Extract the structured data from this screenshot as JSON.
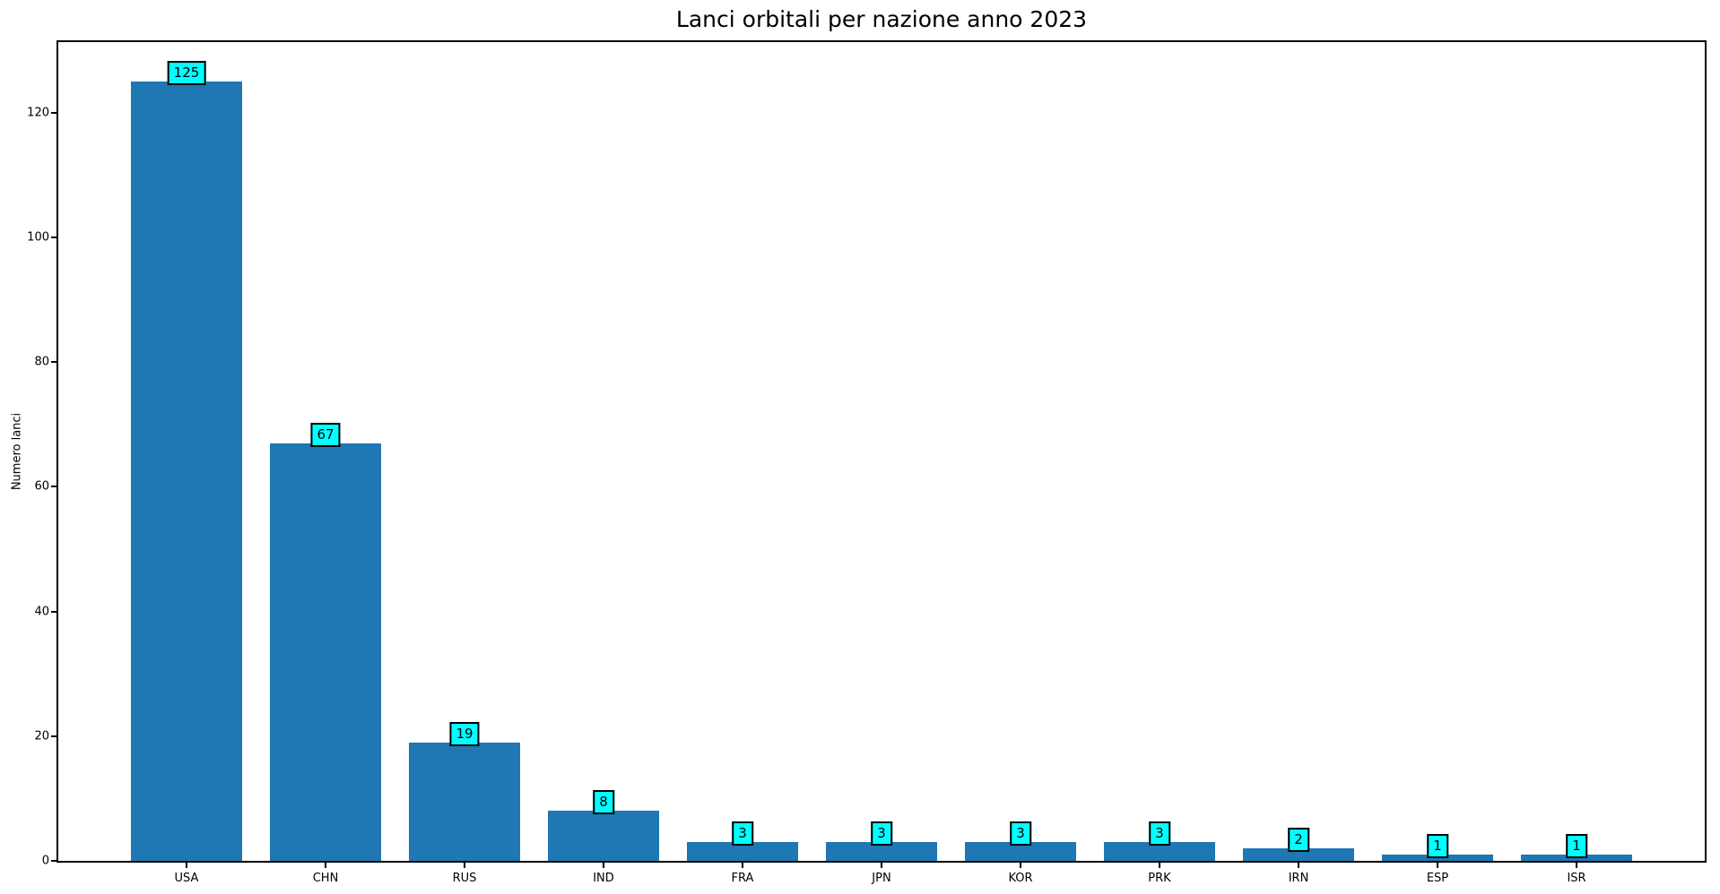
{
  "chart_data": {
    "type": "bar",
    "title": "Lanci orbitali per nazione anno 2023",
    "xlabel": "",
    "ylabel": "Numero lanci",
    "categories": [
      "USA",
      "CHN",
      "RUS",
      "IND",
      "FRA",
      "JPN",
      "KOR",
      "PRK",
      "IRN",
      "ESP",
      "ISR"
    ],
    "values": [
      125,
      67,
      19,
      8,
      3,
      3,
      3,
      3,
      2,
      1,
      1
    ],
    "data_labels": [
      "125",
      "67",
      "19",
      "8",
      "3",
      "3",
      "3",
      "3",
      "2",
      "1",
      "1"
    ],
    "yticks": [
      0,
      20,
      40,
      60,
      80,
      100,
      120
    ],
    "ylim": [
      0,
      131.3
    ],
    "grid": false,
    "legend": "none",
    "colors": {
      "bar": "#1f77b4",
      "annotation_box": "#00ffff",
      "annotation_border": "#000000",
      "axis": "#000000",
      "text": "#000000",
      "background": "#ffffff"
    }
  }
}
